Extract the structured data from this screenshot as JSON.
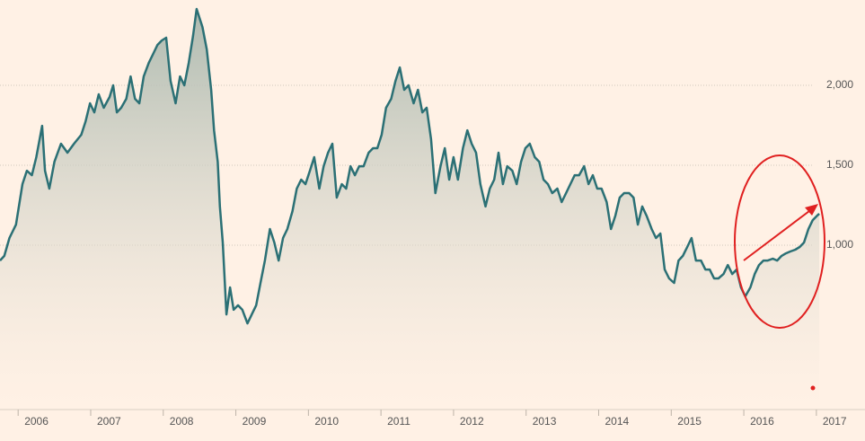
{
  "chart_data": {
    "type": "area",
    "color": "#2b7075",
    "xlim": [
      2005.75,
      2017.67
    ],
    "xticks": [
      2006,
      2007,
      2008,
      2009,
      2010,
      2011,
      2012,
      2013,
      2014,
      2015,
      2016,
      2017
    ],
    "ylim": [
      0,
      2534
    ],
    "yticks": [
      {
        "value": 1000,
        "label": "1,000"
      },
      {
        "value": 1500,
        "label": "1,500"
      },
      {
        "value": 2000,
        "label": "2,000"
      }
    ],
    "grid": true,
    "x": [
      2005.75,
      2005.81,
      2005.88,
      2005.97,
      2006.06,
      2006.12,
      2006.19,
      2006.25,
      2006.33,
      2006.37,
      2006.43,
      2006.5,
      2006.59,
      2006.68,
      2006.77,
      2006.87,
      2006.93,
      2006.99,
      2007.05,
      2007.11,
      2007.18,
      2007.26,
      2007.31,
      2007.36,
      2007.42,
      2007.49,
      2007.55,
      2007.61,
      2007.67,
      2007.73,
      2007.8,
      2007.86,
      2007.92,
      2007.98,
      2008.04,
      2008.1,
      2008.17,
      2008.23,
      2008.29,
      2008.35,
      2008.41,
      2008.46,
      2008.54,
      2008.6,
      2008.66,
      2008.7,
      2008.75,
      2008.78,
      2008.82,
      2008.87,
      2008.92,
      2008.97,
      2009.03,
      2009.09,
      2009.16,
      2009.22,
      2009.28,
      2009.34,
      2009.4,
      2009.47,
      2009.53,
      2009.59,
      2009.65,
      2009.71,
      2009.78,
      2009.84,
      2009.9,
      2009.96,
      2010.02,
      2010.08,
      2010.15,
      2010.21,
      2010.27,
      2010.33,
      2010.39,
      2010.46,
      2010.52,
      2010.58,
      2010.64,
      2010.7,
      2010.76,
      2010.83,
      2010.89,
      2010.95,
      2011.01,
      2011.07,
      2011.14,
      2011.2,
      2011.26,
      2011.32,
      2011.38,
      2011.45,
      2011.51,
      2011.57,
      2011.63,
      2011.69,
      2011.75,
      2011.82,
      2011.88,
      2011.94,
      2012.0,
      2012.06,
      2012.13,
      2012.19,
      2012.25,
      2012.31,
      2012.37,
      2012.44,
      2012.5,
      2012.56,
      2012.62,
      2012.68,
      2012.74,
      2012.81,
      2012.87,
      2012.93,
      2012.99,
      2013.05,
      2013.12,
      2013.18,
      2013.24,
      2013.3,
      2013.36,
      2013.43,
      2013.49,
      2013.55,
      2013.61,
      2013.67,
      2013.73,
      2013.8,
      2013.86,
      2013.92,
      2013.98,
      2014.04,
      2014.11,
      2014.17,
      2014.23,
      2014.29,
      2014.35,
      2014.42,
      2014.48,
      2014.54,
      2014.6,
      2014.66,
      2014.73,
      2014.79,
      2014.85,
      2014.91,
      2014.97,
      2015.04,
      2015.1,
      2015.16,
      2015.22,
      2015.28,
      2015.34,
      2015.41,
      2015.47,
      2015.53,
      2015.59,
      2015.65,
      2015.72,
      2015.78,
      2015.84,
      2015.9,
      2015.96,
      2016.02,
      2016.09,
      2016.15,
      2016.21,
      2016.27,
      2016.33,
      2016.4,
      2016.46,
      2016.52,
      2016.58,
      2016.64,
      2016.71,
      2016.77,
      2016.83,
      2016.89,
      2016.95,
      2017.01,
      2017.04
    ],
    "values": [
      904,
      933,
      1045,
      1129,
      1382,
      1466,
      1438,
      1551,
      1747,
      1466,
      1354,
      1522,
      1635,
      1579,
      1635,
      1691,
      1775,
      1888,
      1831,
      1944,
      1860,
      1927,
      2000,
      1831,
      1860,
      1916,
      2056,
      1916,
      1888,
      2056,
      2140,
      2197,
      2253,
      2281,
      2298,
      2028,
      1888,
      2056,
      2000,
      2140,
      2309,
      2478,
      2365,
      2225,
      1972,
      1719,
      1522,
      1242,
      1017,
      567,
      736,
      596,
      624,
      596,
      511,
      567,
      624,
      764,
      904,
      1101,
      1017,
      904,
      1045,
      1101,
      1213,
      1354,
      1410,
      1382,
      1466,
      1551,
      1354,
      1494,
      1579,
      1635,
      1298,
      1382,
      1354,
      1494,
      1438,
      1494,
      1494,
      1579,
      1607,
      1607,
      1691,
      1860,
      1916,
      2028,
      2112,
      1972,
      2000,
      1888,
      1972,
      1831,
      1860,
      1663,
      1326,
      1494,
      1607,
      1410,
      1551,
      1410,
      1607,
      1719,
      1635,
      1579,
      1382,
      1242,
      1354,
      1410,
      1579,
      1382,
      1494,
      1466,
      1382,
      1522,
      1607,
      1635,
      1551,
      1522,
      1410,
      1382,
      1326,
      1354,
      1270,
      1326,
      1382,
      1438,
      1438,
      1494,
      1382,
      1438,
      1354,
      1354,
      1270,
      1101,
      1185,
      1298,
      1326,
      1326,
      1298,
      1129,
      1242,
      1185,
      1101,
      1045,
      1073,
      848,
      792,
      764,
      904,
      933,
      989,
      1045,
      904,
      904,
      848,
      848,
      792,
      792,
      820,
      876,
      820,
      848,
      736,
      680,
      736,
      820,
      876,
      904,
      904,
      916,
      904,
      933,
      949,
      961,
      972,
      989,
      1017,
      1101,
      1157,
      1185,
      1197
    ]
  }
}
